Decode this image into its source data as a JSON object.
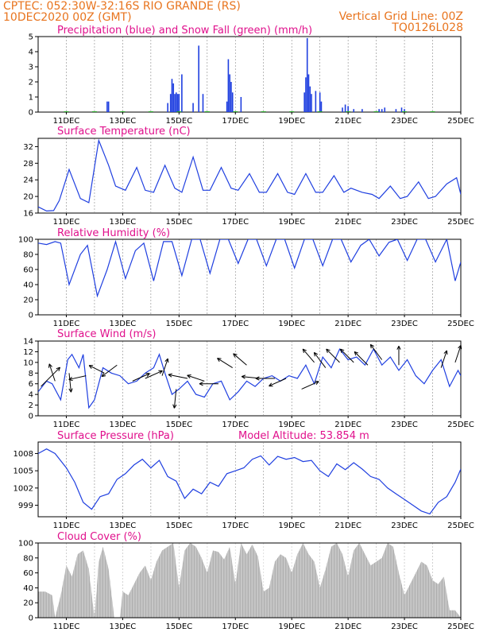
{
  "header": {
    "line1_left": "CPTEC:   052:30W-32:16S  RIO GRANDE (RS)",
    "line2_left": "10DEC2020 00Z (GMT)",
    "line1_right": "Vertical Grid Line: 00Z",
    "line2_right": "TQ0126L028"
  },
  "colors": {
    "header": "#e8741e",
    "title": "#e0108c",
    "line": "#1f3fe0",
    "snow": "#1aa31a",
    "cloud": "#a9a9a9",
    "wind_arrow": "#000000"
  },
  "chart_data": [
    {
      "type": "bar",
      "title": "Precipitation (blue) and Snow Fall (green) (mm/h)",
      "ylim": [
        0,
        5
      ],
      "yticks": [
        0,
        1,
        2,
        3,
        4,
        5
      ],
      "x_labels": [
        "11DEC",
        "13DEC",
        "15DEC",
        "17DEC",
        "19DEC",
        "21DEC",
        "23DEC",
        "25DEC"
      ],
      "series": [
        {
          "name": "Precipitation",
          "color": "#1f3fe0",
          "x": [
            12.45,
            12.5,
            14.6,
            14.7,
            14.75,
            14.8,
            14.85,
            14.9,
            14.95,
            15.0,
            15.1,
            15.5,
            15.7,
            15.85,
            16.7,
            16.75,
            16.8,
            16.85,
            16.9,
            17.2,
            19.45,
            19.5,
            19.55,
            19.6,
            19.65,
            19.7,
            19.85,
            20.0,
            20.05,
            20.8,
            20.9,
            21.0,
            21.2,
            21.5,
            22.1,
            22.2,
            22.3,
            22.7,
            22.9,
            23.0
          ],
          "values": [
            0.7,
            0.7,
            0.6,
            1.2,
            2.2,
            1.9,
            1.2,
            1.3,
            1.2,
            1.2,
            2.5,
            0.6,
            4.4,
            1.2,
            0.7,
            3.5,
            2.5,
            2.0,
            1.3,
            1.0,
            1.3,
            2.3,
            4.9,
            2.5,
            1.7,
            1.2,
            1.4,
            1.3,
            0.7,
            0.3,
            0.5,
            0.4,
            0.2,
            0.2,
            0.2,
            0.2,
            0.3,
            0.2,
            0.3,
            0.2
          ]
        },
        {
          "name": "Snow Fall",
          "color": "#1aa31a",
          "x": [
            11.0,
            12.0,
            13.0,
            14.0,
            15.0,
            16.0,
            17.0,
            18.0,
            19.0,
            20.0,
            21.0,
            22.0,
            23.0,
            24.0
          ],
          "values": [
            0.05,
            0.05,
            0.05,
            0.05,
            0.05,
            0.05,
            0.05,
            0.05,
            0.05,
            0.05,
            0.05,
            0.05,
            0.05,
            0.05
          ]
        }
      ]
    },
    {
      "type": "line",
      "title": "Surface Temperature (nC)",
      "ylim": [
        16,
        34
      ],
      "yticks": [
        16,
        20,
        24,
        28,
        32
      ],
      "x_labels": [
        "11DEC",
        "13DEC",
        "15DEC",
        "17DEC",
        "19DEC",
        "21DEC",
        "23DEC",
        "25DEC"
      ],
      "x": [
        10.0,
        10.3,
        10.55,
        10.75,
        11.1,
        11.5,
        11.8,
        12.15,
        12.5,
        12.75,
        13.1,
        13.5,
        13.8,
        14.1,
        14.5,
        14.85,
        15.1,
        15.5,
        15.85,
        16.1,
        16.5,
        16.85,
        17.1,
        17.5,
        17.85,
        18.1,
        18.5,
        18.85,
        19.1,
        19.5,
        19.85,
        20.1,
        20.5,
        20.85,
        21.1,
        21.5,
        21.85,
        22.1,
        22.5,
        22.85,
        23.1,
        23.5,
        23.85,
        24.1,
        24.5,
        24.85,
        25.0
      ],
      "values": [
        17.5,
        16.5,
        16.6,
        19.0,
        26.5,
        19.5,
        18.5,
        33.5,
        27.5,
        22.5,
        21.5,
        27.0,
        21.5,
        21.0,
        27.5,
        22.0,
        21.0,
        29.5,
        21.5,
        21.5,
        27.0,
        22.0,
        21.5,
        25.5,
        21.0,
        21.0,
        25.5,
        21.0,
        20.5,
        25.5,
        21.0,
        21.0,
        25.0,
        21.0,
        22.0,
        21.0,
        20.5,
        19.5,
        22.5,
        19.5,
        20.0,
        23.5,
        19.5,
        20.0,
        23.0,
        24.5,
        20.5
      ]
    },
    {
      "type": "line",
      "title": "Relative Humidity (%)",
      "ylim": [
        0,
        100
      ],
      "yticks": [
        0,
        20,
        40,
        60,
        80,
        100
      ],
      "x_labels": [
        "11DEC",
        "13DEC",
        "15DEC",
        "17DEC",
        "19DEC",
        "21DEC",
        "23DEC",
        "25DEC"
      ],
      "x": [
        10.0,
        10.3,
        10.6,
        10.8,
        11.1,
        11.5,
        11.75,
        12.1,
        12.45,
        12.75,
        13.1,
        13.45,
        13.75,
        14.1,
        14.45,
        14.75,
        15.1,
        15.45,
        15.75,
        16.1,
        16.45,
        16.75,
        17.1,
        17.45,
        17.75,
        18.1,
        18.45,
        18.75,
        19.1,
        19.45,
        19.75,
        20.1,
        20.45,
        20.75,
        21.1,
        21.45,
        21.75,
        22.1,
        22.45,
        22.75,
        23.1,
        23.45,
        23.75,
        24.1,
        24.5,
        24.8,
        25.0
      ],
      "values": [
        95,
        93,
        97,
        95,
        40,
        80,
        92,
        25,
        60,
        97,
        48,
        85,
        95,
        45,
        97,
        97,
        52,
        100,
        100,
        55,
        100,
        100,
        68,
        100,
        100,
        65,
        100,
        100,
        62,
        100,
        100,
        65,
        100,
        100,
        70,
        92,
        100,
        78,
        96,
        100,
        72,
        100,
        100,
        70,
        100,
        45,
        70
      ]
    },
    {
      "type": "line",
      "title": "Surface Wind (m/s)",
      "ylim": [
        0,
        14
      ],
      "yticks": [
        0,
        2,
        4,
        6,
        8,
        10,
        12,
        14
      ],
      "x_labels": [
        "11DEC",
        "13DEC",
        "15DEC",
        "17DEC",
        "19DEC",
        "21DEC",
        "23DEC",
        "25DEC"
      ],
      "x": [
        10.0,
        10.3,
        10.5,
        10.8,
        11.05,
        11.2,
        11.45,
        11.6,
        11.8,
        12.0,
        12.3,
        12.6,
        12.9,
        13.2,
        13.5,
        13.8,
        14.1,
        14.3,
        14.5,
        14.75,
        15.0,
        15.3,
        15.6,
        15.9,
        16.2,
        16.5,
        16.8,
        17.1,
        17.4,
        17.7,
        18.0,
        18.3,
        18.6,
        18.9,
        19.2,
        19.5,
        19.8,
        20.1,
        20.4,
        20.7,
        21.0,
        21.3,
        21.6,
        21.9,
        22.2,
        22.5,
        22.8,
        23.1,
        23.4,
        23.7,
        24.0,
        24.3,
        24.6,
        24.9,
        25.0
      ],
      "values": [
        4.5,
        6.5,
        6.0,
        3.0,
        10.5,
        11.5,
        9.0,
        11.5,
        1.5,
        3.0,
        9.0,
        8.0,
        7.5,
        6.0,
        6.5,
        8.0,
        9.0,
        11.5,
        8.0,
        4.0,
        5.0,
        6.5,
        4.0,
        3.5,
        6.0,
        6.5,
        3.0,
        4.5,
        6.5,
        5.5,
        7.0,
        7.5,
        6.5,
        7.5,
        7.0,
        9.5,
        6.0,
        11.0,
        9.0,
        12.5,
        10.5,
        11.0,
        9.5,
        12.5,
        9.5,
        11.0,
        8.5,
        10.5,
        7.5,
        6.0,
        8.5,
        10.5,
        5.5,
        8.5,
        7.5
      ],
      "arrows": [
        {
          "day": 10.1,
          "speed": 5.5,
          "u": 1.0,
          "v": 1.0
        },
        {
          "day": 10.6,
          "speed": 6.5,
          "u": -0.3,
          "v": 0.9
        },
        {
          "day": 11.1,
          "speed": 8.0,
          "u": 0.1,
          "v": -1.0
        },
        {
          "day": 11.7,
          "speed": 7.5,
          "u": -0.9,
          "v": -0.2
        },
        {
          "day": 12.35,
          "speed": 8.0,
          "u": -0.8,
          "v": 0.4
        },
        {
          "day": 12.8,
          "speed": 9.5,
          "u": -0.8,
          "v": -0.6
        },
        {
          "day": 13.35,
          "speed": 6.5,
          "u": 0.9,
          "v": 0.4
        },
        {
          "day": 13.8,
          "speed": 7.0,
          "u": 0.9,
          "v": 0.4
        },
        {
          "day": 14.4,
          "speed": 7.5,
          "u": 0.3,
          "v": 0.9
        },
        {
          "day": 14.9,
          "speed": 5.0,
          "u": -0.1,
          "v": -1.0
        },
        {
          "day": 15.3,
          "speed": 7.0,
          "u": -1.0,
          "v": 0.2
        },
        {
          "day": 15.9,
          "speed": 6.5,
          "u": -0.9,
          "v": 0.3
        },
        {
          "day": 16.4,
          "speed": 6.0,
          "u": -1.0,
          "v": 0.0
        },
        {
          "day": 16.9,
          "speed": 9.0,
          "u": -0.8,
          "v": 0.5
        },
        {
          "day": 17.4,
          "speed": 9.5,
          "u": -0.7,
          "v": 0.6
        },
        {
          "day": 17.9,
          "speed": 7.0,
          "u": -1.0,
          "v": 0.1
        },
        {
          "day": 18.4,
          "speed": 7.0,
          "u": -1.0,
          "v": 0.0
        },
        {
          "day": 18.8,
          "speed": 7.0,
          "u": -0.9,
          "v": -0.4
        },
        {
          "day": 19.35,
          "speed": 5.0,
          "u": 0.9,
          "v": 0.4
        },
        {
          "day": 19.8,
          "speed": 10.0,
          "u": -0.6,
          "v": 0.7
        },
        {
          "day": 20.2,
          "speed": 9.0,
          "u": -0.6,
          "v": 0.8
        },
        {
          "day": 20.7,
          "speed": 10.0,
          "u": -0.7,
          "v": 0.7
        },
        {
          "day": 21.2,
          "speed": 10.0,
          "u": -0.7,
          "v": 0.7
        },
        {
          "day": 21.7,
          "speed": 9.5,
          "u": -0.7,
          "v": 0.7
        },
        {
          "day": 22.2,
          "speed": 10.5,
          "u": -0.6,
          "v": 0.8
        },
        {
          "day": 22.8,
          "speed": 9.5,
          "u": 0.0,
          "v": 1.0
        },
        {
          "day": 24.3,
          "speed": 9.0,
          "u": 0.3,
          "v": 0.9
        },
        {
          "day": 24.8,
          "speed": 10.0,
          "u": 0.3,
          "v": 0.9
        }
      ]
    },
    {
      "type": "line",
      "title": "Surface Pressure (hPa)",
      "annotation": "Model Altitude: 53.854 m",
      "ylim": [
        997,
        1010
      ],
      "yticks": [
        999,
        1002,
        1005,
        1008
      ],
      "x_labels": [
        "11DEC",
        "13DEC",
        "15DEC",
        "17DEC",
        "19DEC",
        "21DEC",
        "23DEC",
        "25DEC"
      ],
      "x": [
        10.0,
        10.3,
        10.6,
        11.0,
        11.3,
        11.6,
        11.9,
        12.2,
        12.5,
        12.8,
        13.1,
        13.4,
        13.7,
        14.0,
        14.3,
        14.6,
        14.9,
        15.2,
        15.5,
        15.8,
        16.1,
        16.4,
        16.7,
        17.0,
        17.3,
        17.6,
        17.9,
        18.2,
        18.5,
        18.8,
        19.1,
        19.4,
        19.7,
        20.0,
        20.3,
        20.6,
        20.9,
        21.2,
        21.5,
        21.8,
        22.1,
        22.4,
        22.7,
        23.0,
        23.3,
        23.6,
        23.9,
        24.2,
        24.5,
        24.8,
        25.0
      ],
      "values": [
        1008.0,
        1008.8,
        1008.0,
        1005.5,
        1003.0,
        999.5,
        998.3,
        1000.5,
        1001.0,
        1003.5,
        1004.5,
        1006.0,
        1007.0,
        1005.5,
        1006.8,
        1004.0,
        1003.2,
        1000.2,
        1001.8,
        1001.0,
        1003.0,
        1002.3,
        1004.5,
        1005.0,
        1005.5,
        1007.0,
        1007.6,
        1006.0,
        1007.5,
        1007.0,
        1007.3,
        1006.6,
        1006.8,
        1005.0,
        1004.0,
        1006.2,
        1005.2,
        1006.4,
        1005.3,
        1004.0,
        1003.5,
        1002.0,
        1001.0,
        1000.0,
        999.0,
        998.0,
        997.5,
        999.5,
        1000.5,
        1003.0,
        1005.3
      ]
    },
    {
      "type": "area",
      "title": "Cloud Cover (%)",
      "ylim": [
        0,
        100
      ],
      "yticks": [
        0,
        20,
        40,
        60,
        80,
        100
      ],
      "x_labels": [
        "11DEC",
        "13DEC",
        "15DEC",
        "17DEC",
        "19DEC",
        "21DEC",
        "23DEC",
        "25DEC"
      ],
      "x": [
        10.0,
        10.25,
        10.5,
        10.6,
        10.8,
        11.0,
        11.2,
        11.4,
        11.6,
        11.8,
        12.0,
        12.15,
        12.3,
        12.5,
        12.7,
        12.9,
        13.0,
        13.2,
        13.4,
        13.6,
        13.8,
        14.0,
        14.2,
        14.4,
        14.6,
        14.8,
        15.0,
        15.2,
        15.4,
        15.6,
        15.8,
        16.0,
        16.2,
        16.4,
        16.6,
        16.8,
        17.0,
        17.2,
        17.4,
        17.6,
        17.8,
        18.0,
        18.2,
        18.4,
        18.6,
        18.8,
        19.0,
        19.2,
        19.4,
        19.6,
        19.8,
        20.0,
        20.2,
        20.4,
        20.6,
        20.8,
        21.0,
        21.2,
        21.4,
        21.6,
        21.8,
        22.0,
        22.2,
        22.4,
        22.6,
        22.8,
        23.0,
        23.2,
        23.4,
        23.6,
        23.8,
        24.0,
        24.2,
        24.4,
        24.6,
        24.8,
        25.0
      ],
      "values": [
        35,
        35,
        30,
        0,
        30,
        70,
        55,
        85,
        90,
        65,
        0,
        75,
        95,
        65,
        0,
        0,
        35,
        30,
        45,
        60,
        70,
        50,
        75,
        90,
        95,
        100,
        40,
        90,
        100,
        95,
        80,
        60,
        90,
        88,
        78,
        95,
        45,
        100,
        85,
        98,
        82,
        35,
        40,
        75,
        85,
        80,
        60,
        85,
        100,
        85,
        75,
        40,
        65,
        95,
        100,
        85,
        55,
        90,
        100,
        85,
        70,
        75,
        80,
        100,
        95,
        60,
        30,
        45,
        60,
        75,
        70,
        50,
        45,
        55,
        10,
        10,
        0
      ]
    }
  ]
}
